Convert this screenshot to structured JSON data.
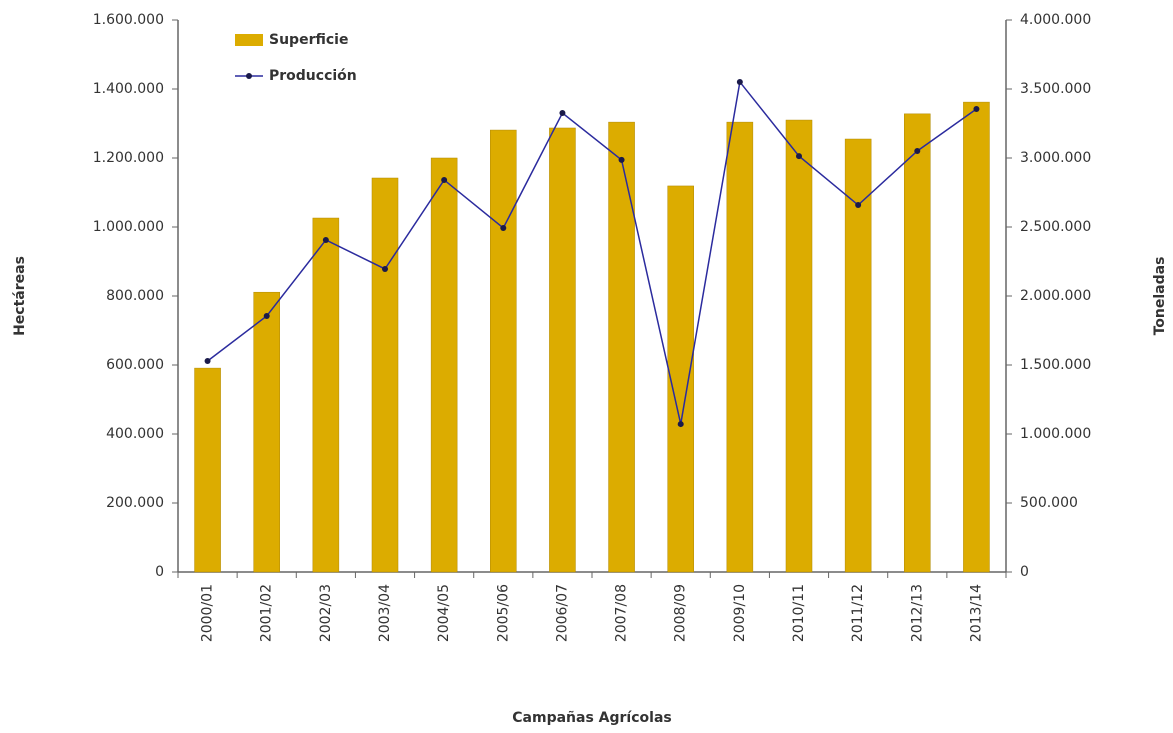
{
  "chart_data": {
    "type": "bar_line",
    "x_label": "Campañas Agrícolas",
    "y_label": "Hectáreas",
    "y2_label": "Toneladas",
    "categories": [
      "2000/01",
      "2001/02",
      "2002/03",
      "2003/04",
      "2004/05",
      "2005/06",
      "2006/07",
      "2007/08",
      "2008/09",
      "2009/10",
      "2010/11",
      "2011/12",
      "2012/13",
      "2013/14"
    ],
    "series": [
      {
        "name": "Superficie",
        "type": "bar",
        "color": "#dcac00",
        "axis": "y",
        "values": [
          591000,
          811000,
          1026000,
          1142000,
          1200000,
          1281000,
          1287000,
          1304000,
          1119000,
          1304000,
          1310000,
          1255000,
          1328000,
          1362000
        ]
      },
      {
        "name": "Producción",
        "type": "line",
        "color": "#2b2b9e",
        "axis": "y2",
        "values": [
          1529000,
          1855000,
          2406000,
          2196000,
          2841000,
          2493000,
          3326000,
          2986000,
          1072000,
          3551000,
          3014000,
          2659000,
          3051000,
          3355000
        ]
      }
    ],
    "ylim": [
      0,
      1600000
    ],
    "yticks": [
      0,
      {
        "value": 200000,
        "label": "200.000"
      },
      {
        "value": 400000,
        "label": "400.000"
      },
      {
        "value": 600000,
        "label": "600.000"
      },
      {
        "value": 800000,
        "label": "800.000"
      },
      {
        "value": 1000000,
        "label": "1.000.000"
      },
      {
        "value": 1200000,
        "label": "1.200.000"
      },
      {
        "value": 1400000,
        "label": "1.400.000"
      },
      {
        "value": 1600000,
        "label": "1.600.000"
      }
    ],
    "y2lim": [
      0,
      4000000
    ],
    "y2ticks": [
      0,
      {
        "value": 500000,
        "label": "500.000"
      },
      {
        "value": 1000000,
        "label": "1.000.000"
      },
      {
        "value": 1500000,
        "label": "1.500.000"
      },
      {
        "value": 2000000,
        "label": "2.000.000"
      },
      {
        "value": 2500000,
        "label": "2.500.000"
      },
      {
        "value": 3000000,
        "label": "3.000.000"
      },
      {
        "value": 3500000,
        "label": "3.500.000"
      },
      {
        "value": 4000000,
        "label": "4.000.000"
      }
    ],
    "legend": "top-left",
    "grid": false
  }
}
